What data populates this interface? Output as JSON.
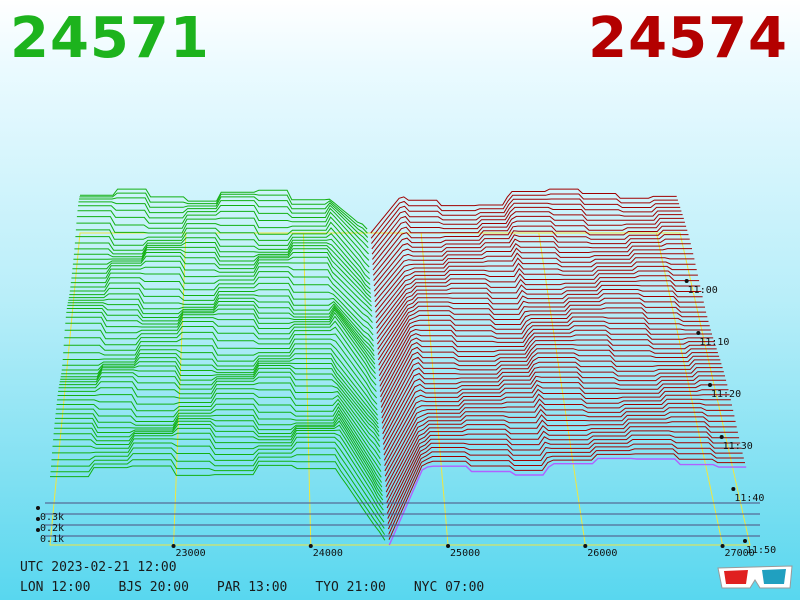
{
  "header": {
    "bid_price": "24571",
    "ask_price": "24574"
  },
  "footer": {
    "utc_label": "UTC 2023-02-21 12:00",
    "zones": [
      "LON 12:00",
      "BJS 20:00",
      "PAR 13:00",
      "TYO 21:00",
      "NYC 07:00"
    ]
  },
  "icons": {
    "glasses": "3d-glasses-icon"
  },
  "colors": {
    "bid": "#1db31d",
    "ask": "#b30000",
    "bid_line": "#12b012",
    "ask_line": "#a00000",
    "latest_depth": "#b060ff",
    "grid": "#f0e640",
    "base": "#4d4d80"
  },
  "chart_data": {
    "type": "3d-depth",
    "price_ticks": [
      23000,
      24000,
      25000,
      26000,
      27000
    ],
    "price_range": [
      22100,
      27200
    ],
    "mid_price": 24572,
    "time_ticks": [
      "11:00",
      "11:10",
      "11:20",
      "11:30",
      "11:40",
      "11:50"
    ],
    "time_range_minutes": [
      0,
      60
    ],
    "volume_ticks": [
      "0.1k",
      "0.2k",
      "0.3k"
    ],
    "volume_range": [
      0,
      0.7
    ],
    "snapshots": 60,
    "series": [
      {
        "name": "24571",
        "side": "bid"
      },
      {
        "name": "24574",
        "side": "ask"
      }
    ]
  }
}
